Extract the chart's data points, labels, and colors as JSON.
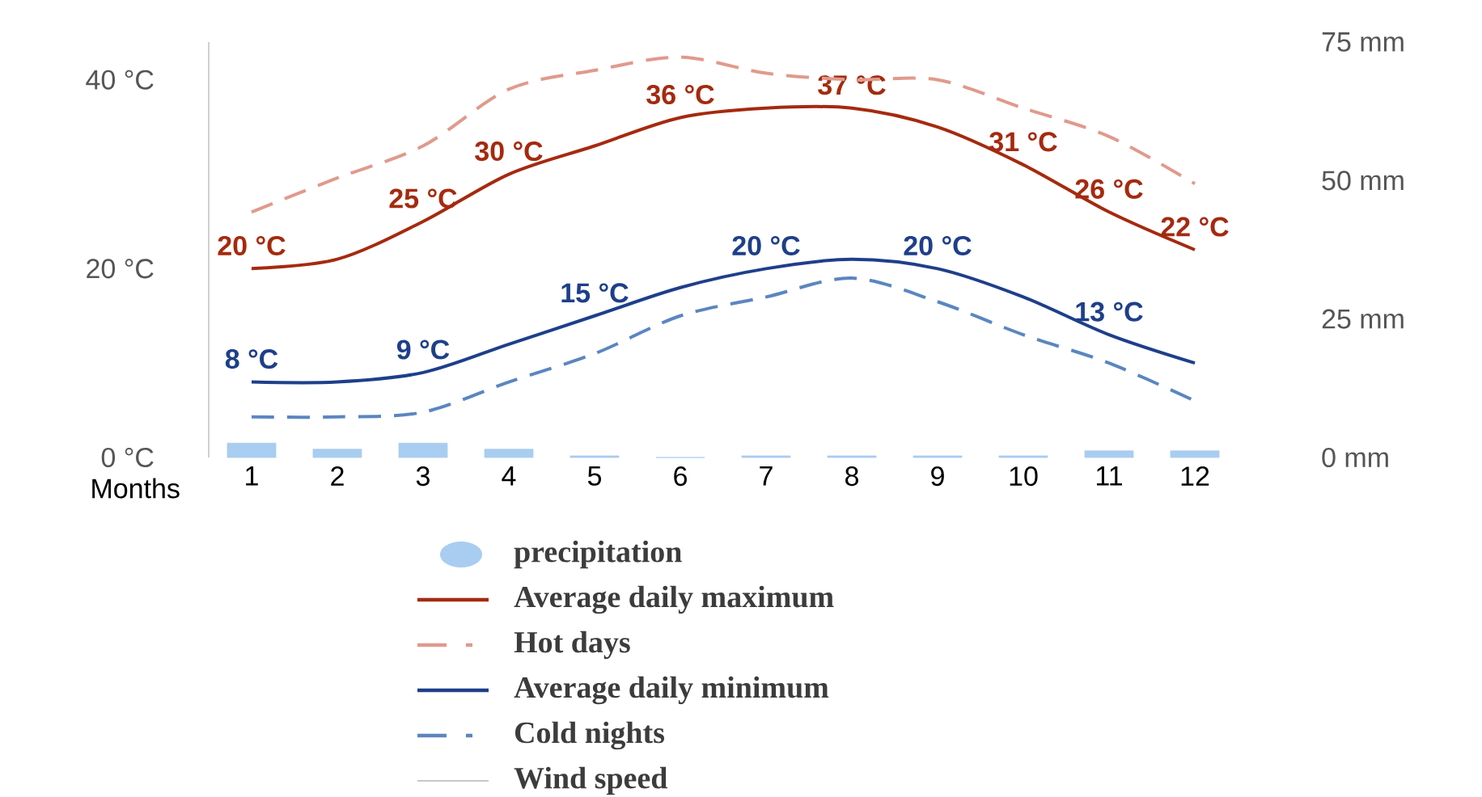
{
  "chart_data": {
    "type": "line",
    "xlabel": "Months",
    "categories": [
      "1",
      "2",
      "3",
      "4",
      "5",
      "6",
      "7",
      "8",
      "9",
      "10",
      "11",
      "12"
    ],
    "series": [
      {
        "name": "precipitation",
        "type": "bar",
        "axis": "y2",
        "color": "#a9cdf0",
        "values": [
          2.6,
          1.5,
          2.6,
          1.5,
          0.3,
          0,
          0.3,
          0.3,
          0.3,
          0.3,
          1.2,
          1.2
        ]
      },
      {
        "name": "Average daily maximum",
        "color": "#a52a0f",
        "line_style": "solid",
        "values": [
          20,
          21,
          25,
          30,
          33,
          36,
          37,
          37,
          35,
          31,
          26,
          22
        ],
        "value_labels": [
          "20 °C",
          null,
          "25 °C",
          "30 °C",
          null,
          "36 °C",
          null,
          "37 °C",
          null,
          "31 °C",
          "26 °C",
          "22 °C"
        ]
      },
      {
        "name": "Hot days",
        "color": "#e09a8c",
        "line_style": "dashed",
        "values": [
          26,
          29.6,
          33,
          39,
          41,
          42.4,
          40.7,
          40,
          40,
          37,
          34,
          29
        ]
      },
      {
        "name": "Average daily minimum",
        "color": "#1e3f8a",
        "line_style": "solid",
        "values": [
          8,
          8,
          9,
          12,
          15,
          18,
          20,
          21,
          20,
          17,
          13,
          10
        ],
        "value_labels": [
          "8 °C",
          null,
          "9 °C",
          null,
          "15 °C",
          null,
          "20 °C",
          null,
          "20 °C",
          null,
          "13 °C",
          null
        ]
      },
      {
        "name": "Cold nights",
        "color": "#5b86c0",
        "line_style": "dashed",
        "values": [
          4.3,
          4.3,
          4.8,
          8,
          11,
          15,
          17,
          19,
          16.5,
          13,
          10,
          6
        ]
      },
      {
        "name": "Wind speed",
        "color": "#c8c8c8",
        "line_style": "solid",
        "values": [
          null,
          null,
          null,
          null,
          null,
          null,
          null,
          null,
          null,
          null,
          null,
          null
        ]
      }
    ],
    "ylim": [
      0,
      44
    ],
    "yticks": [
      {
        "value": 0,
        "label": "0 °C"
      },
      {
        "value": 20,
        "label": "20 °C"
      },
      {
        "value": 40,
        "label": "40 °C"
      }
    ],
    "y2lim": [
      0,
      75
    ],
    "y2ticks": [
      {
        "value": 0,
        "label": "0 mm"
      },
      {
        "value": 25,
        "label": "25 mm"
      },
      {
        "value": 50,
        "label": "50 mm"
      },
      {
        "value": 75,
        "label": "75 mm"
      }
    ],
    "legend": "bottom"
  }
}
